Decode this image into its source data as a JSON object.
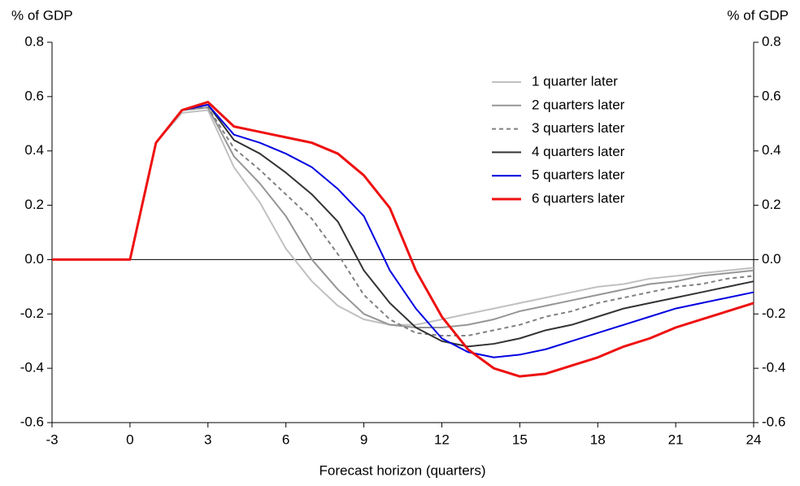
{
  "chart_data": {
    "type": "line",
    "xlabel": "Forecast horizon (quarters)",
    "ylabel": "% of GDP",
    "y2label": "% of GDP",
    "x": [
      -3,
      -2,
      -1,
      0,
      1,
      2,
      3,
      4,
      5,
      6,
      7,
      8,
      9,
      10,
      11,
      12,
      13,
      14,
      15,
      16,
      17,
      18,
      19,
      20,
      21,
      22,
      23,
      24
    ],
    "xlim": [
      -3,
      24
    ],
    "xticks": [
      -3,
      0,
      3,
      6,
      9,
      12,
      15,
      18,
      21,
      24
    ],
    "ylim": [
      -0.6,
      0.8
    ],
    "yticks": [
      0.8,
      0.6,
      0.4,
      0.2,
      {
        "value": 0,
        "label": "0.0"
      },
      -0.2,
      -0.4,
      -0.6
    ],
    "y2lim": [
      -0.6,
      0.8
    ],
    "y2ticks": [
      0.8,
      0.6,
      0.4,
      0.2,
      {
        "value": 0,
        "label": "0.0"
      },
      -0.2,
      -0.4,
      -0.6
    ],
    "legend": "upper right",
    "series": [
      {
        "name": "1 quarter later",
        "color": "#c0c0c0",
        "dashed": false,
        "values": [
          0,
          0,
          0,
          0,
          0.43,
          0.54,
          0.55,
          0.34,
          0.21,
          0.04,
          -0.08,
          -0.17,
          -0.22,
          -0.24,
          -0.24,
          -0.22,
          -0.2,
          -0.18,
          -0.16,
          -0.14,
          -0.12,
          -0.1,
          -0.09,
          -0.07,
          -0.06,
          -0.05,
          -0.04,
          -0.03
        ]
      },
      {
        "name": "2 quarters later",
        "color": "#969696",
        "dashed": false,
        "values": [
          0,
          0,
          0,
          0,
          0.43,
          0.55,
          0.56,
          0.38,
          0.28,
          0.16,
          0.0,
          -0.11,
          -0.2,
          -0.24,
          -0.25,
          -0.25,
          -0.24,
          -0.22,
          -0.19,
          -0.17,
          -0.15,
          -0.13,
          -0.11,
          -0.09,
          -0.08,
          -0.06,
          -0.05,
          -0.04
        ]
      },
      {
        "name": "3 quarters later",
        "color": "#808080",
        "dashed": true,
        "values": [
          0,
          0,
          0,
          0,
          0.43,
          0.55,
          0.56,
          0.41,
          0.33,
          0.24,
          0.15,
          0.02,
          -0.13,
          -0.22,
          -0.27,
          -0.28,
          -0.28,
          -0.26,
          -0.24,
          -0.21,
          -0.19,
          -0.16,
          -0.14,
          -0.12,
          -0.1,
          -0.09,
          -0.07,
          -0.06
        ]
      },
      {
        "name": "4 quarters later",
        "color": "#333333",
        "dashed": false,
        "values": [
          0,
          0,
          0,
          0,
          0.43,
          0.55,
          0.57,
          0.44,
          0.39,
          0.32,
          0.24,
          0.14,
          -0.04,
          -0.16,
          -0.25,
          -0.3,
          -0.32,
          -0.31,
          -0.29,
          -0.26,
          -0.24,
          -0.21,
          -0.18,
          -0.16,
          -0.14,
          -0.12,
          -0.1,
          -0.08
        ]
      },
      {
        "name": "5 quarters later",
        "color": "#0000e0",
        "dashed": false,
        "values": [
          0,
          0,
          0,
          0,
          0.43,
          0.55,
          0.57,
          0.46,
          0.43,
          0.39,
          0.34,
          0.26,
          0.16,
          -0.04,
          -0.18,
          -0.29,
          -0.34,
          -0.36,
          -0.35,
          -0.33,
          -0.3,
          -0.27,
          -0.24,
          -0.21,
          -0.18,
          -0.16,
          -0.14,
          -0.12
        ]
      },
      {
        "name": "6 quarters later",
        "color": "#ee1111",
        "dashed": false,
        "values": [
          0,
          0,
          0,
          0,
          0.43,
          0.55,
          0.58,
          0.49,
          0.47,
          0.45,
          0.43,
          0.39,
          0.31,
          0.19,
          -0.04,
          -0.21,
          -0.33,
          -0.4,
          -0.43,
          -0.42,
          -0.39,
          -0.36,
          -0.32,
          -0.29,
          -0.25,
          -0.22,
          -0.19,
          -0.16
        ]
      }
    ]
  }
}
